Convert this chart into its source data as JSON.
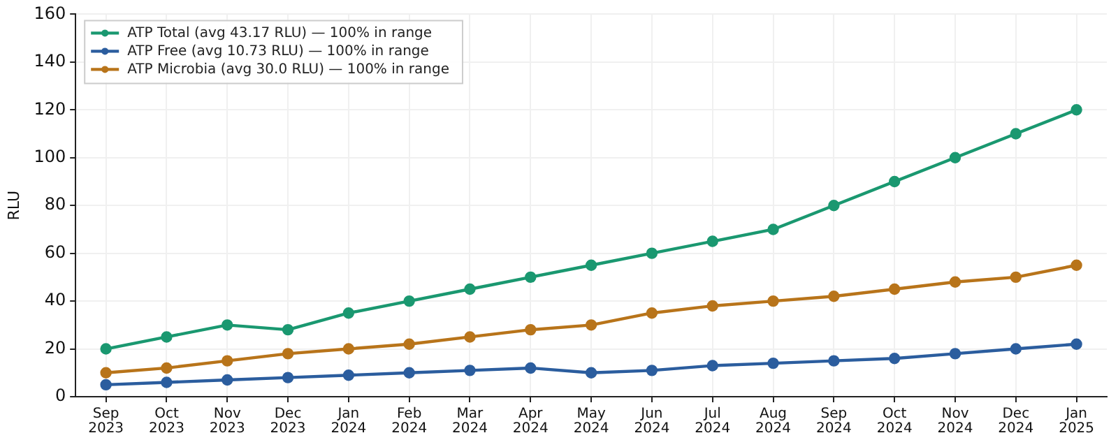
{
  "chart_data": {
    "type": "line",
    "ylabel": "RLU",
    "categories": [
      "Sep 2023",
      "Oct 2023",
      "Nov 2023",
      "Dec 2023",
      "Jan 2024",
      "Feb 2024",
      "Mar 2024",
      "Apr 2024",
      "May 2024",
      "Jun 2024",
      "Jul 2024",
      "Aug 2024",
      "Sep 2024",
      "Oct 2024",
      "Nov 2024",
      "Dec 2024",
      "Jan 2025"
    ],
    "series": [
      {
        "name": "ATP Total (avg 43.17 RLU) — 100% in range",
        "color": "#1a9870",
        "values": [
          20,
          25,
          30,
          28,
          35,
          40,
          45,
          50,
          55,
          60,
          65,
          70,
          80,
          90,
          100,
          110,
          120
        ]
      },
      {
        "name": "ATP Free (avg 10.73 RLU) — 100% in range",
        "color": "#2b5d9e",
        "values": [
          5,
          6,
          7,
          8,
          9,
          10,
          11,
          12,
          10,
          11,
          13,
          14,
          15,
          16,
          18,
          20,
          22
        ]
      },
      {
        "name": "ATP Microbia (avg 30.0 RLU) — 100% in range",
        "color": "#b8741a",
        "values": [
          10,
          12,
          15,
          18,
          20,
          22,
          25,
          28,
          30,
          35,
          38,
          40,
          42,
          45,
          48,
          50,
          55
        ]
      }
    ],
    "ylim": [
      0,
      160
    ],
    "yticks": [
      0,
      20,
      40,
      60,
      80,
      100,
      120,
      140,
      160
    ],
    "grid": true,
    "legend": "top left",
    "marker": "circle",
    "line_style": "solid"
  }
}
